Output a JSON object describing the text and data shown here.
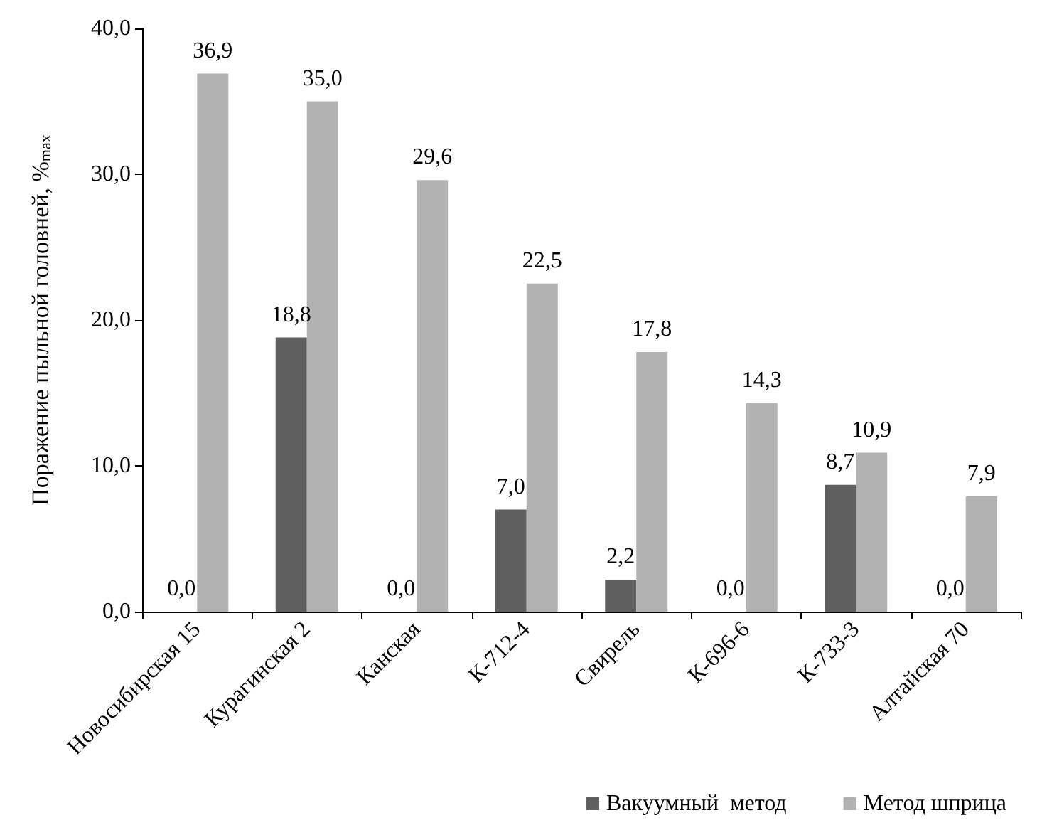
{
  "chart_data": {
    "type": "bar",
    "ylabel": "Поражение пыльной головней, %$_{max}$",
    "categories": [
      "Новосибирская 15",
      "Курагинская 2",
      "Канская",
      "К-712-4",
      "Свирель",
      "К-696-6",
      "К-733-3",
      "Алтайская 70"
    ],
    "series": [
      {
        "name": "Вакуумный  метод",
        "color": "#5f5f5f",
        "values": [
          0.0,
          18.8,
          0.0,
          7.0,
          2.2,
          0.0,
          8.7,
          0.0
        ],
        "value_labels": [
          "0,0",
          "18,8",
          "0,0",
          "7,0",
          "2,2",
          "0,0",
          "8,7",
          "0,0"
        ]
      },
      {
        "name": "Метод шприца",
        "color": "#b2b2b2",
        "values": [
          36.9,
          35.0,
          29.6,
          22.5,
          17.8,
          14.3,
          10.9,
          7.9
        ],
        "value_labels": [
          "36,9",
          "35,0",
          "29,6",
          "22,5",
          "17,8",
          "14,3",
          "10,9",
          "7,9"
        ]
      }
    ],
    "ylim": [
      0,
      40
    ],
    "yticks": [
      {
        "value": 0,
        "label": "0,0"
      },
      {
        "value": 10,
        "label": "10,0"
      },
      {
        "value": 20,
        "label": "20,0"
      },
      {
        "value": 30,
        "label": "30,0"
      },
      {
        "value": 40,
        "label": "40,0"
      }
    ],
    "grid": false,
    "legend": "bottom right"
  }
}
